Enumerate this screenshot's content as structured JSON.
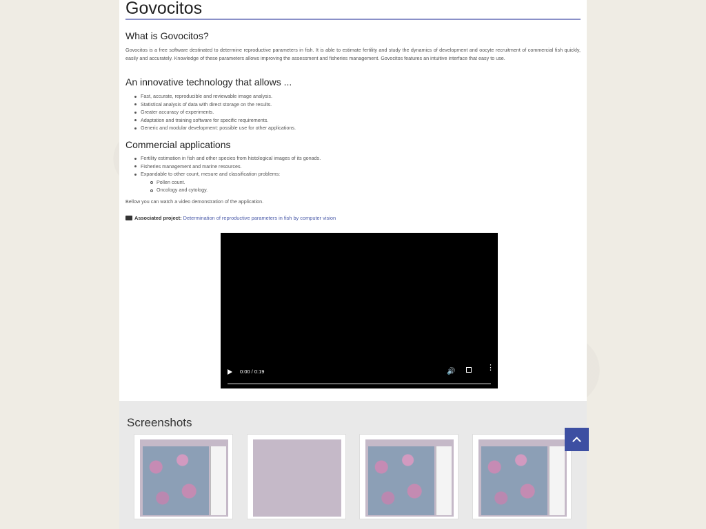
{
  "title": "Govocitos",
  "what": {
    "heading": "What is Govocitos?",
    "text": "Govocitos is a free software destinated to determine reproductive parameters in fish. It is able to estimate fertility and study the dynamics of development and oocyte recruitment of commercial fish quickly, easily and accurately. Knowledge of these parameters allows improving the assessment and fisheries management. Govocitos features an intuitive interface that easy to use."
  },
  "innovative": {
    "heading": "An innovative technology that allows ...",
    "items": [
      "Fast, accurate, reproducible and reviewable image analysis.",
      "Statistical analysis of data with direct storage on the results.",
      "Greater accuracy of experiments.",
      "Adaptation and training software for specific requirements.",
      "Generic and modular development: possible use for other applications."
    ]
  },
  "commercial": {
    "heading": "Commercial applications",
    "items": [
      "Fertility estimation in fish and other species from histological images of its gonads.",
      "Fisheries management and marine resources.",
      "Expandable to other count, mesure and classification problems:"
    ],
    "subitems": [
      "Pollen count.",
      "Oncology and cytology."
    ]
  },
  "demo_text": "Bellow you can watch a video demonstration of the application.",
  "associated": {
    "label": "Associated project:",
    "link": "Determination of reproductive parameters in fish by computer vision"
  },
  "video": {
    "time": "0:00 / 0:19",
    "progress": 0
  },
  "screenshots": {
    "heading": "Screenshots"
  },
  "icons": {
    "folder": "folder-open-icon",
    "play": "play-icon",
    "volume": "volume-icon",
    "fullscreen": "fullscreen-icon",
    "more": "more-vert-icon",
    "back_to_top": "chevron-up-icon"
  },
  "colors": {
    "accent": "#3d4fa2",
    "rule": "#8a90c8",
    "link": "#4a5aa8"
  }
}
